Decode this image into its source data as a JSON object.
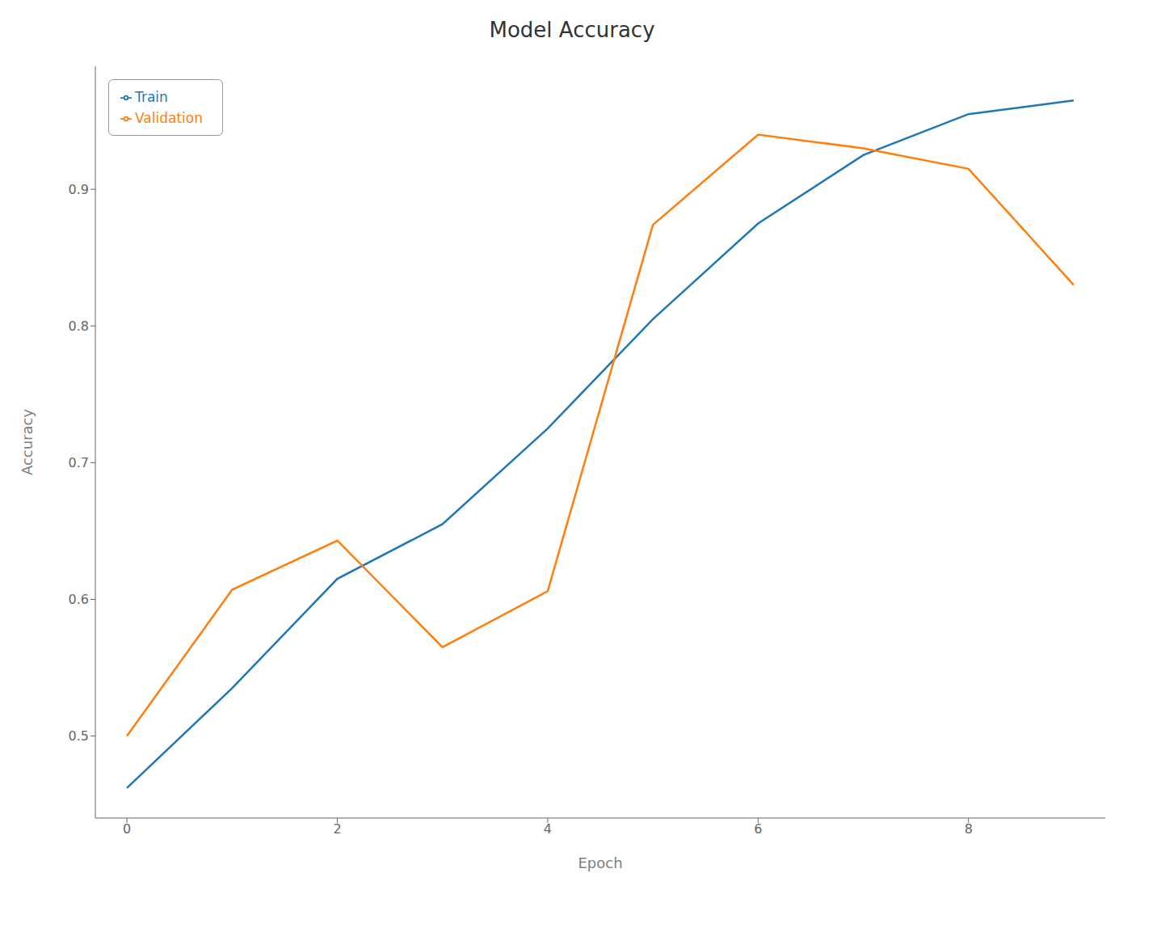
{
  "chart_data": {
    "type": "line",
    "title": "Model Accuracy",
    "x_label": "Epoch",
    "y_label": "Accuracy",
    "x": [
      0,
      1,
      2,
      3,
      4,
      5,
      6,
      7,
      8,
      9
    ],
    "series": [
      {
        "name": "Train",
        "color": "#1f77b4",
        "values": [
          0.462,
          0.535,
          0.615,
          0.655,
          0.725,
          0.805,
          0.875,
          0.925,
          0.955,
          0.965
        ]
      },
      {
        "name": "Validation",
        "color": "#ff7f0e",
        "values": [
          0.5,
          0.607,
          0.643,
          0.565,
          0.606,
          0.874,
          0.94,
          0.93,
          0.915,
          0.83
        ]
      }
    ],
    "xlim": [
      -0.3,
      9.3
    ],
    "xticks": [
      0,
      2,
      4,
      6,
      8
    ],
    "ylim": [
      0.44,
      0.99
    ],
    "yticks": [
      0.5,
      0.6,
      0.7,
      0.8,
      0.9
    ],
    "grid": false,
    "legend": "upper left"
  }
}
